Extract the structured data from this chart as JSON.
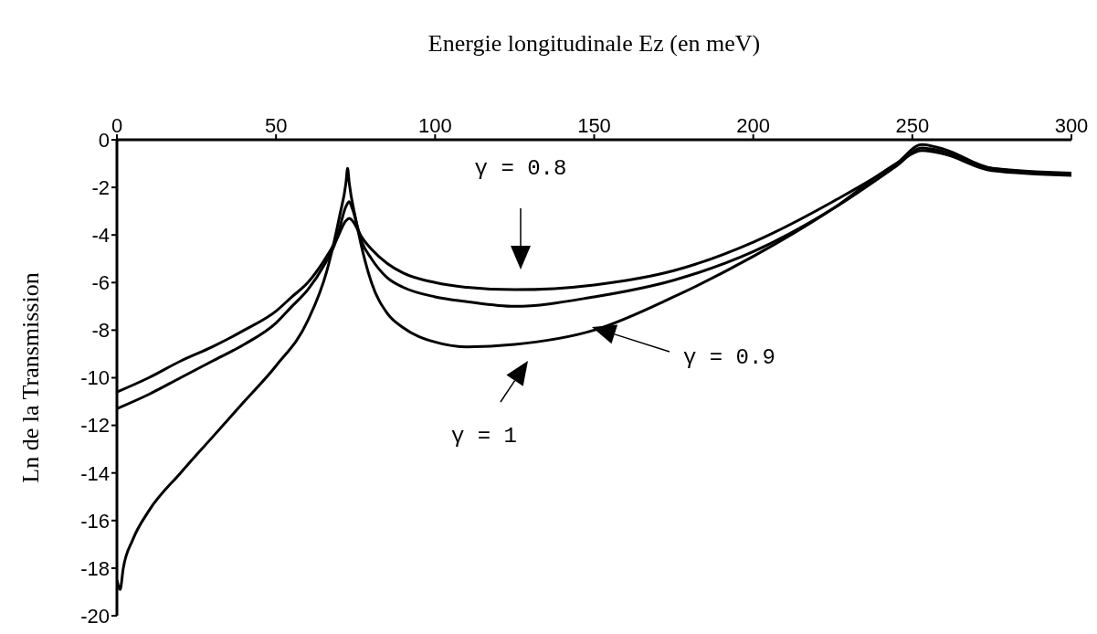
{
  "chart_data": {
    "type": "line",
    "xlabel": "Energie longitudinale Ez (en meV)",
    "ylabel": "Ln de la Transmission",
    "xlim": [
      0,
      300
    ],
    "xticks": [
      0,
      50,
      100,
      150,
      200,
      250,
      300
    ],
    "ylim": [
      -20,
      0
    ],
    "yticks": [
      0,
      -2,
      -4,
      -6,
      -8,
      -10,
      -12,
      -14,
      -16,
      -18,
      -20
    ],
    "marker": "none",
    "line_style": "solid",
    "series": [
      {
        "color": "#000000",
        "x": [
          0,
          10,
          20,
          30,
          40,
          50,
          55,
          60,
          65,
          69,
          72,
          73,
          74,
          77,
          80,
          85,
          90,
          100,
          110,
          125,
          150,
          175,
          200,
          225,
          245,
          253,
          260,
          275,
          300
        ],
        "values": [
          -10.6,
          -10,
          -9.3,
          -8.7,
          -8,
          -7.2,
          -6.6,
          -6,
          -5.1,
          -4.2,
          -3.4,
          -3.3,
          -3.4,
          -4.1,
          -4.6,
          -5.2,
          -5.6,
          -6,
          -6.2,
          -6.3,
          -6.1,
          -5.5,
          -4.3,
          -2.6,
          -1,
          -0.2,
          -0.4,
          -1.2,
          -1.4
        ]
      },
      {
        "color": "#000000",
        "x": [
          0,
          10,
          20,
          30,
          40,
          50,
          55,
          60,
          65,
          69,
          72,
          73,
          74,
          77,
          80,
          85,
          90,
          100,
          110,
          125,
          150,
          175,
          200,
          225,
          245,
          253,
          260,
          275,
          300
        ],
        "values": [
          -11.3,
          -10.7,
          -10,
          -9.3,
          -8.6,
          -7.7,
          -7,
          -6.3,
          -5.3,
          -4.2,
          -2.8,
          -2.6,
          -2.9,
          -4.3,
          -5,
          -5.8,
          -6.2,
          -6.6,
          -6.8,
          -7,
          -6.6,
          -5.9,
          -4.7,
          -2.9,
          -1.1,
          -0.35,
          -0.5,
          -1.2,
          -1.45
        ]
      },
      {
        "color": "#000000",
        "x": [
          0,
          1,
          2,
          5,
          10,
          20,
          30,
          40,
          50,
          60,
          66,
          70,
          72,
          72.5,
          73,
          75,
          80,
          85,
          90,
          100,
          110,
          125,
          150,
          175,
          200,
          225,
          245,
          253,
          260,
          275,
          300
        ],
        "values": [
          -18.5,
          -18.9,
          -18,
          -16.8,
          -15.6,
          -14,
          -12.5,
          -11,
          -9.5,
          -7.6,
          -5.5,
          -3.2,
          -1.8,
          -1.2,
          -1.8,
          -3.3,
          -6,
          -7.3,
          -7.9,
          -8.5,
          -8.7,
          -8.6,
          -8,
          -6.6,
          -4.9,
          -2.9,
          -1,
          -0.45,
          -0.6,
          -1.3,
          -1.5
        ]
      }
    ],
    "annotations": [
      "γ = 0.8",
      "γ = 0.9",
      "γ = 1"
    ]
  }
}
